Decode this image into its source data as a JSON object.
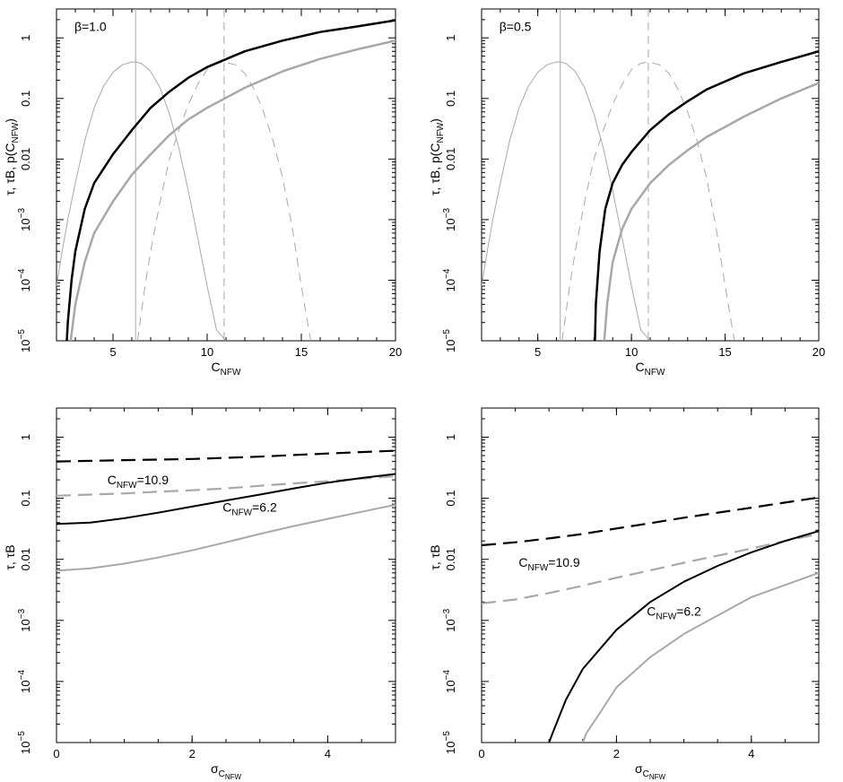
{
  "figure": {
    "background": "#ffffff",
    "black": "#000000",
    "grey": "#a8a8a8"
  },
  "chart_data": [
    {
      "type": "line",
      "y_scale": "log",
      "xlim": [
        2,
        20
      ],
      "ylim": [
        1e-05,
        3
      ],
      "x_ticks": [
        5,
        10,
        15,
        20
      ],
      "y_ticks": [
        {
          "value": 1e-05,
          "base": "10",
          "exp": "−5"
        },
        {
          "value": 0.0001,
          "base": "10",
          "exp": "−4"
        },
        {
          "value": 0.001,
          "base": "10",
          "exp": "−3"
        },
        {
          "value": 0.01,
          "label": "0.01"
        },
        {
          "value": 0.1,
          "label": "0.1"
        },
        {
          "value": 1,
          "label": "1"
        }
      ],
      "xlabel": {
        "main": "C",
        "sub": "NFW"
      },
      "ylabel": {
        "parts": [
          "τ, τB, p(C",
          ")"
        ],
        "sub": "NFW"
      },
      "annotation": {
        "text": "β=1.0",
        "x": 3.8,
        "y": 1.3
      },
      "vlines": [
        {
          "x": 6.2,
          "color": "grey",
          "dash": false
        },
        {
          "x": 10.9,
          "color": "grey",
          "dash": true
        }
      ],
      "series": [
        {
          "color": "grey",
          "width": 1,
          "dash": false,
          "x": [
            2.0,
            2.3,
            2.6,
            3.0,
            3.5,
            4.0,
            4.5,
            5.0,
            5.5,
            6.0,
            6.2,
            6.5,
            7.0,
            7.5,
            8.0,
            8.5,
            9.0,
            9.5,
            10.0,
            10.5,
            11.0
          ],
          "y": [
            8e-05,
            0.0003,
            0.001,
            0.004,
            0.02,
            0.07,
            0.16,
            0.27,
            0.36,
            0.4,
            0.4,
            0.38,
            0.28,
            0.15,
            0.055,
            0.015,
            0.003,
            0.0005,
            8e-05,
            1.5e-05,
            1e-05
          ]
        },
        {
          "color": "grey",
          "width": 1,
          "dash": true,
          "x": [
            6.3,
            6.7,
            7.0,
            7.5,
            8.0,
            8.5,
            9.0,
            9.5,
            10.0,
            10.5,
            10.9,
            11.5,
            12.0,
            12.5,
            13.0,
            13.5,
            14.0,
            14.5,
            15.0,
            15.5
          ],
          "y": [
            1e-05,
            8e-05,
            0.0003,
            0.002,
            0.01,
            0.03,
            0.08,
            0.17,
            0.3,
            0.38,
            0.4,
            0.36,
            0.26,
            0.14,
            0.06,
            0.02,
            0.005,
            0.0008,
            8e-05,
            1e-05
          ]
        },
        {
          "color": "black",
          "width": 2.5,
          "dash": false,
          "x": [
            2.55,
            2.6,
            2.8,
            3.0,
            3.5,
            4.0,
            5.0,
            6.0,
            7.0,
            8.0,
            9.0,
            10.0,
            12.0,
            14.0,
            16.0,
            18.0,
            20.0
          ],
          "y": [
            1e-05,
            2e-05,
            0.0001,
            0.0003,
            0.0015,
            0.004,
            0.012,
            0.03,
            0.07,
            0.13,
            0.22,
            0.33,
            0.6,
            0.9,
            1.25,
            1.55,
            1.95
          ]
        },
        {
          "color": "grey",
          "width": 2.5,
          "dash": false,
          "x": [
            2.75,
            3.0,
            3.5,
            4.0,
            5.0,
            6.0,
            7.0,
            8.0,
            9.0,
            10.0,
            12.0,
            14.0,
            16.0,
            18.0,
            20.0
          ],
          "y": [
            1e-05,
            4e-05,
            0.0002,
            0.0006,
            0.002,
            0.0055,
            0.012,
            0.025,
            0.045,
            0.07,
            0.15,
            0.28,
            0.45,
            0.65,
            0.9
          ]
        }
      ]
    },
    {
      "type": "line",
      "y_scale": "log",
      "xlim": [
        2,
        20
      ],
      "ylim": [
        1e-05,
        3
      ],
      "x_ticks": [
        5,
        10,
        15,
        20
      ],
      "y_ticks": [
        {
          "value": 1e-05,
          "base": "10",
          "exp": "−5"
        },
        {
          "value": 0.0001,
          "base": "10",
          "exp": "−4"
        },
        {
          "value": 0.001,
          "base": "10",
          "exp": "−3"
        },
        {
          "value": 0.01,
          "label": "0.01"
        },
        {
          "value": 0.1,
          "label": "0.1"
        },
        {
          "value": 1,
          "label": "1"
        }
      ],
      "xlabel": {
        "main": "C",
        "sub": "NFW"
      },
      "ylabel": {
        "parts": [
          "τ, τB, p(C",
          ")"
        ],
        "sub": "NFW"
      },
      "annotation": {
        "text": "β=0.5",
        "x": 3.8,
        "y": 1.3
      },
      "vlines": [
        {
          "x": 6.2,
          "color": "grey",
          "dash": false
        },
        {
          "x": 10.9,
          "color": "grey",
          "dash": true
        }
      ],
      "series": [
        {
          "color": "grey",
          "width": 1,
          "dash": false,
          "x": [
            2.0,
            2.3,
            2.6,
            3.0,
            3.5,
            4.0,
            4.5,
            5.0,
            5.5,
            6.0,
            6.2,
            6.5,
            7.0,
            7.5,
            8.0,
            8.5,
            9.0,
            9.5,
            10.0,
            10.5,
            11.0
          ],
          "y": [
            8e-05,
            0.0003,
            0.001,
            0.004,
            0.02,
            0.07,
            0.16,
            0.27,
            0.36,
            0.4,
            0.4,
            0.38,
            0.28,
            0.15,
            0.055,
            0.015,
            0.003,
            0.0005,
            8e-05,
            1.5e-05,
            1e-05
          ]
        },
        {
          "color": "grey",
          "width": 1,
          "dash": true,
          "x": [
            6.3,
            6.7,
            7.0,
            7.5,
            8.0,
            8.5,
            9.0,
            9.5,
            10.0,
            10.5,
            10.9,
            11.5,
            12.0,
            12.5,
            13.0,
            13.5,
            14.0,
            14.5,
            15.0,
            15.5
          ],
          "y": [
            1e-05,
            8e-05,
            0.0003,
            0.002,
            0.01,
            0.03,
            0.08,
            0.17,
            0.3,
            0.38,
            0.4,
            0.36,
            0.26,
            0.14,
            0.06,
            0.02,
            0.005,
            0.0008,
            8e-05,
            1e-05
          ]
        },
        {
          "color": "black",
          "width": 2.5,
          "dash": false,
          "x": [
            8.05,
            8.1,
            8.3,
            8.6,
            9.0,
            9.5,
            10.0,
            11.0,
            12.0,
            13.0,
            14.0,
            16.0,
            18.0,
            20.0
          ],
          "y": [
            1e-05,
            4e-05,
            0.0003,
            0.0015,
            0.004,
            0.008,
            0.013,
            0.03,
            0.055,
            0.09,
            0.14,
            0.26,
            0.4,
            0.6
          ]
        },
        {
          "color": "grey",
          "width": 2.5,
          "dash": false,
          "x": [
            8.55,
            8.7,
            9.0,
            9.5,
            10.0,
            11.0,
            12.0,
            13.0,
            14.0,
            16.0,
            18.0,
            20.0
          ],
          "y": [
            1e-05,
            4e-05,
            0.0002,
            0.0007,
            0.0015,
            0.004,
            0.008,
            0.014,
            0.023,
            0.05,
            0.1,
            0.18
          ]
        }
      ]
    },
    {
      "type": "line",
      "y_scale": "log",
      "xlim": [
        0,
        5
      ],
      "ylim": [
        1e-05,
        3
      ],
      "x_ticks": [
        0,
        2,
        4
      ],
      "y_ticks": [
        {
          "value": 1e-05,
          "base": "10",
          "exp": "−5"
        },
        {
          "value": 0.0001,
          "base": "10",
          "exp": "−4"
        },
        {
          "value": 0.001,
          "base": "10",
          "exp": "−3"
        },
        {
          "value": 0.01,
          "label": "0.01"
        },
        {
          "value": 0.1,
          "label": "0.1"
        },
        {
          "value": 1,
          "label": "1"
        }
      ],
      "xlabel": {
        "main": "σ",
        "sub": "C",
        "subsub": "NFW"
      },
      "ylabel": {
        "parts": [
          "τ, τB"
        ],
        "sub": ""
      },
      "labels": [
        {
          "text": "C",
          "sub": "NFW",
          "tail": "=10.9",
          "x": 0.75,
          "y": 0.17
        },
        {
          "text": "C",
          "sub": "NFW",
          "tail": "=6.2",
          "x": 2.45,
          "y": 0.06
        }
      ],
      "series": [
        {
          "color": "black",
          "width": 2.2,
          "dash": true,
          "x": [
            0,
            0.5,
            1.0,
            1.5,
            2.0,
            2.5,
            3.0,
            3.5,
            4.0,
            4.5,
            5.0
          ],
          "y": [
            0.4,
            0.41,
            0.42,
            0.43,
            0.44,
            0.46,
            0.48,
            0.51,
            0.54,
            0.57,
            0.6
          ]
        },
        {
          "color": "grey",
          "width": 2.2,
          "dash": true,
          "x": [
            0,
            0.5,
            1.0,
            1.5,
            2.0,
            2.5,
            3.0,
            3.5,
            4.0,
            4.5,
            5.0
          ],
          "y": [
            0.11,
            0.115,
            0.12,
            0.128,
            0.135,
            0.145,
            0.16,
            0.175,
            0.19,
            0.21,
            0.23
          ]
        },
        {
          "color": "black",
          "width": 2,
          "dash": false,
          "x": [
            0,
            0.5,
            1.0,
            1.5,
            2.0,
            2.5,
            3.0,
            3.5,
            4.0,
            4.5,
            5.0
          ],
          "y": [
            0.038,
            0.04,
            0.047,
            0.058,
            0.073,
            0.092,
            0.115,
            0.145,
            0.18,
            0.215,
            0.25
          ]
        },
        {
          "color": "grey",
          "width": 2,
          "dash": false,
          "x": [
            0,
            0.5,
            1.0,
            1.5,
            2.0,
            2.5,
            3.0,
            3.5,
            4.0,
            4.5,
            5.0
          ],
          "y": [
            0.0065,
            0.0071,
            0.0085,
            0.0107,
            0.014,
            0.019,
            0.026,
            0.035,
            0.046,
            0.06,
            0.078
          ]
        }
      ]
    },
    {
      "type": "line",
      "y_scale": "log",
      "xlim": [
        0,
        5
      ],
      "ylim": [
        1e-05,
        3
      ],
      "x_ticks": [
        0,
        2,
        4
      ],
      "y_ticks": [
        {
          "value": 1e-05,
          "base": "10",
          "exp": "−5"
        },
        {
          "value": 0.0001,
          "base": "10",
          "exp": "−4"
        },
        {
          "value": 0.001,
          "base": "10",
          "exp": "−3"
        },
        {
          "value": 0.01,
          "label": "0.01"
        },
        {
          "value": 0.1,
          "label": "0.1"
        },
        {
          "value": 1,
          "label": "1"
        }
      ],
      "xlabel": {
        "main": "σ",
        "sub": "C",
        "subsub": "NFW"
      },
      "ylabel": {
        "parts": [
          "τ, τB"
        ],
        "sub": ""
      },
      "labels": [
        {
          "text": "C",
          "sub": "NFW",
          "tail": "=10.9",
          "x": 0.55,
          "y": 0.0075
        },
        {
          "text": "C",
          "sub": "NFW",
          "tail": "=6.2",
          "x": 2.45,
          "y": 0.0012
        }
      ],
      "series": [
        {
          "color": "black",
          "width": 2.2,
          "dash": true,
          "x": [
            0,
            0.5,
            1.0,
            1.5,
            2.0,
            2.5,
            3.0,
            3.5,
            4.0,
            4.5,
            5.0
          ],
          "y": [
            0.017,
            0.019,
            0.022,
            0.026,
            0.032,
            0.039,
            0.048,
            0.058,
            0.07,
            0.085,
            0.103
          ]
        },
        {
          "color": "grey",
          "width": 2.2,
          "dash": true,
          "x": [
            0,
            0.5,
            1.0,
            1.5,
            2.0,
            2.5,
            3.0,
            3.5,
            4.0,
            4.5,
            5.0
          ],
          "y": [
            0.0019,
            0.0022,
            0.0028,
            0.0037,
            0.005,
            0.0066,
            0.0088,
            0.0115,
            0.015,
            0.02,
            0.026
          ]
        },
        {
          "color": "black",
          "width": 2,
          "dash": false,
          "x": [
            1.0,
            1.05,
            1.25,
            1.5,
            2.0,
            2.5,
            3.0,
            3.5,
            4.0,
            4.5,
            5.0
          ],
          "y": [
            1e-05,
            1.4e-05,
            5e-05,
            0.00016,
            0.0007,
            0.002,
            0.0043,
            0.0078,
            0.013,
            0.02,
            0.029
          ]
        },
        {
          "color": "grey",
          "width": 2,
          "dash": false,
          "x": [
            1.5,
            1.55,
            1.75,
            2.0,
            2.5,
            3.0,
            3.5,
            4.0,
            4.5,
            5.0
          ],
          "y": [
            1e-05,
            1.4e-05,
            3e-05,
            8e-05,
            0.00025,
            0.0006,
            0.0012,
            0.0024,
            0.0038,
            0.006
          ]
        }
      ]
    }
  ]
}
